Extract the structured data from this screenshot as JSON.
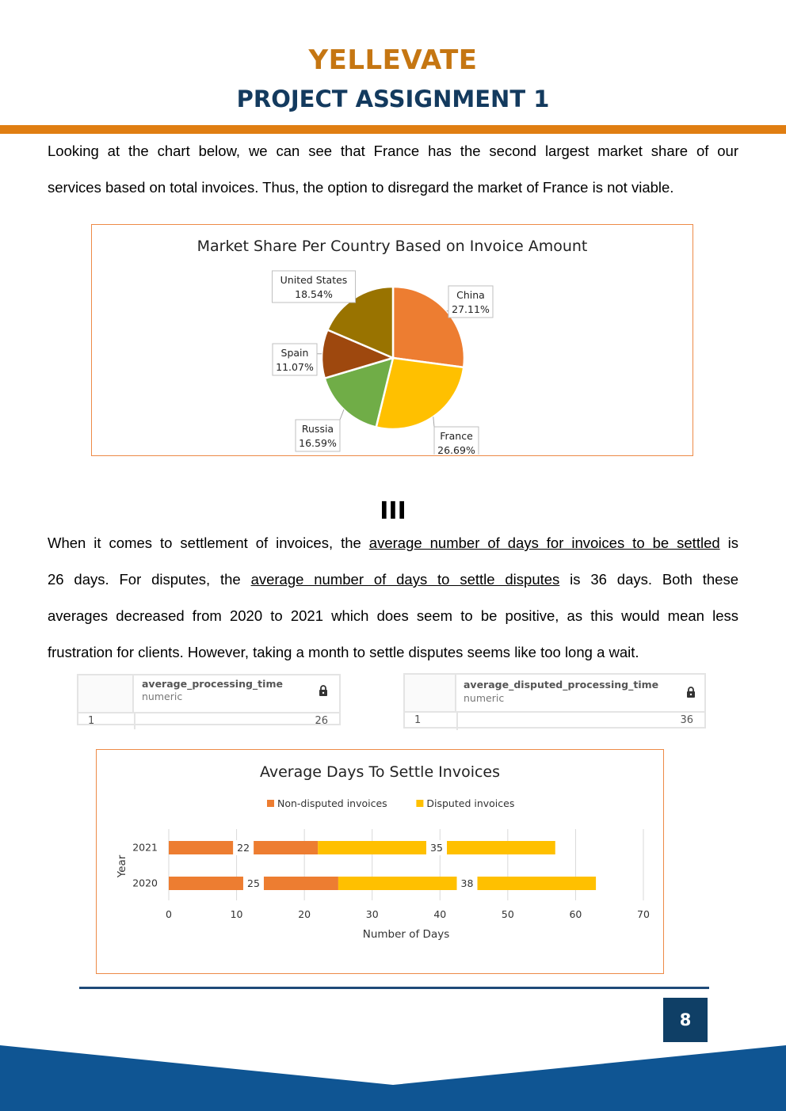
{
  "header": {
    "brand": "YELLEVATE",
    "assignment": "PROJECT ASSIGNMENT 1"
  },
  "intro": {
    "line1": "Looking at the chart below, we can see that France has the second largest market share of our",
    "line2": "services based on total invoices. Thus, the option to disregard the market of France is not viable."
  },
  "section_mark": "III",
  "settlement": {
    "l1_a": "When it comes to settlement of invoices, the ",
    "l1_u": "average number of days for invoices to be settled",
    "l1_b": " is",
    "l2_a": "26 days. For disputes, the ",
    "l2_u": "average number of days to settle disputes",
    "l2_b": " is 36 days. Both these",
    "l3": "averages decreased from 2020 to 2021 which does seem to be positive, as this would mean less",
    "l4": "frustration for clients. However, taking a month to settle disputes seems like too long a wait."
  },
  "query_results": [
    {
      "column": "average_processing_time",
      "type": "numeric",
      "row": "1",
      "value": "26"
    },
    {
      "column": "average_disputed_processing_time",
      "type": "numeric",
      "row": "1",
      "value": "36"
    }
  ],
  "page_number": "8",
  "colors": {
    "brand_orange": "#c57612",
    "navy": "#133a5e",
    "footer_blue": "#0f5593",
    "chart_border": "#ed8a47"
  },
  "chart_data": [
    {
      "type": "pie",
      "title": "Market Share Per Country Based on Invoice Amount",
      "slices": [
        {
          "label": "China",
          "value": 27.11,
          "display": "27.11%",
          "color": "#ed7d31"
        },
        {
          "label": "France",
          "value": 26.69,
          "display": "26.69%",
          "color": "#ffc000"
        },
        {
          "label": "Russia",
          "value": 16.59,
          "display": "16.59%",
          "color": "#70ad47"
        },
        {
          "label": "Spain",
          "value": 11.07,
          "display": "11.07%",
          "color": "#9e480e"
        },
        {
          "label": "United States",
          "value": 18.54,
          "display": "18.54%",
          "color": "#997300"
        }
      ]
    },
    {
      "type": "bar",
      "orientation": "horizontal",
      "stacked": true,
      "title": "Average Days To Settle Invoices",
      "categories": [
        "2021",
        "2020"
      ],
      "series": [
        {
          "name": "Non-disputed invoices",
          "values": [
            22,
            25
          ],
          "color": "#ed7d31"
        },
        {
          "name": "Disputed invoices",
          "values": [
            35,
            38
          ],
          "color": "#ffc000"
        }
      ],
      "xlabel": "Number of Days",
      "ylabel": "Year",
      "xlim": [
        0,
        70
      ],
      "xticks": [
        "0",
        "10",
        "20",
        "30",
        "40",
        "50",
        "60",
        "70"
      ],
      "grid": true,
      "legend": "top"
    }
  ]
}
